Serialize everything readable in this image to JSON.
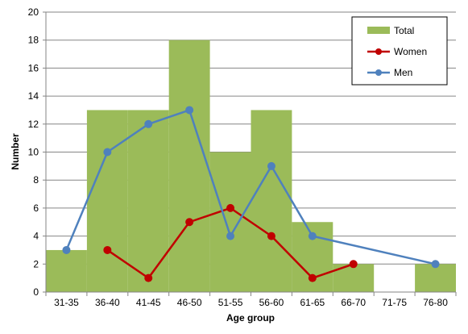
{
  "chart_data": {
    "type": "bar",
    "categories": [
      "31-35",
      "36-40",
      "41-45",
      "46-50",
      "51-55",
      "56-60",
      "61-65",
      "66-70",
      "71-75",
      "76-80"
    ],
    "series": [
      {
        "name": "Total",
        "type": "bar",
        "color": "#9BBB59",
        "values": [
          3,
          13,
          13,
          18,
          10,
          13,
          5,
          2,
          0,
          2
        ]
      },
      {
        "name": "Women",
        "type": "line",
        "color": "#C00000",
        "values": [
          null,
          3,
          1,
          5,
          6,
          4,
          1,
          2,
          null,
          null
        ]
      },
      {
        "name": "Men",
        "type": "line",
        "color": "#4F81BD",
        "values": [
          3,
          10,
          12,
          13,
          4,
          9,
          4,
          null,
          null,
          2
        ]
      }
    ],
    "xlabel": "Age group",
    "ylabel": "Number",
    "ylim": [
      0,
      20
    ],
    "yticks": [
      0,
      2,
      4,
      6,
      8,
      10,
      12,
      14,
      16,
      18,
      20
    ],
    "grid": "horizontal",
    "legend_position": "top-right"
  }
}
